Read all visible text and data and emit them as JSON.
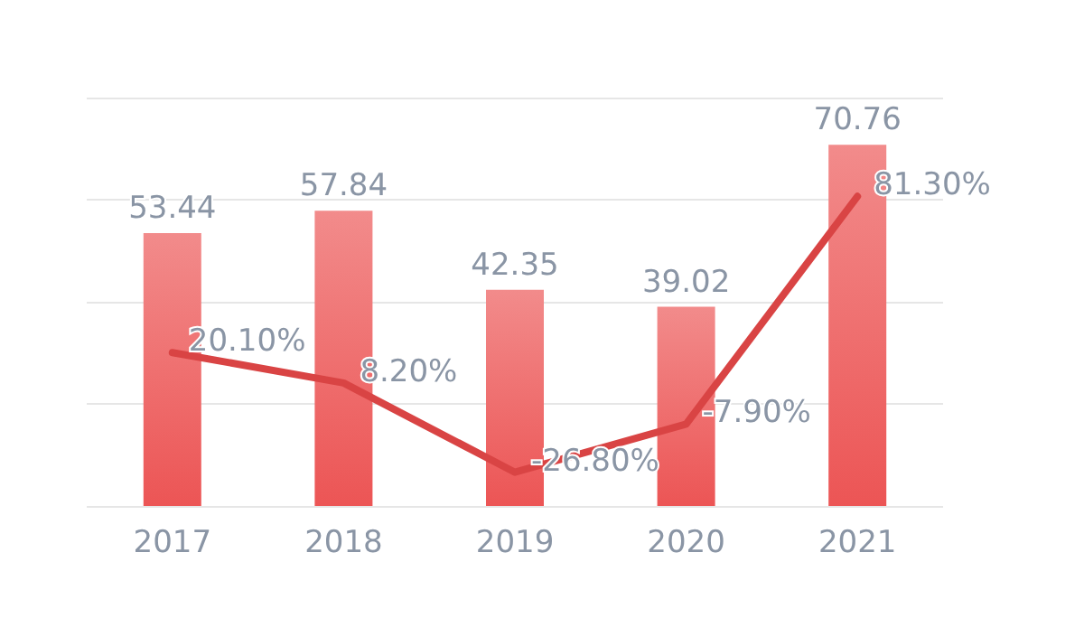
{
  "chart_data": {
    "type": "bar",
    "categories": [
      "2017",
      "2018",
      "2019",
      "2020",
      "2021"
    ],
    "series": [
      {
        "color": "#f28b8b",
        "values": [
          53.44,
          57.84,
          42.35,
          39.02,
          70.76
        ],
        "value_labels": [
          "53.44",
          "57.84",
          "42.35",
          "39.02",
          "70.76"
        ]
      },
      {
        "type": "line",
        "axis": "y2",
        "color": "#d94444",
        "values": [
          20.1,
          8.2,
          -26.8,
          -7.9,
          81.3
        ],
        "value_labels": [
          "20.10%",
          "8.20%",
          "-26.80%",
          "-7.90%",
          "81.30%"
        ]
      }
    ],
    "ylim": [
      0,
      80
    ],
    "yticks": [
      0,
      20,
      40,
      60,
      80
    ],
    "y2lim": [
      -40,
      120
    ],
    "y2ticks": [
      -40,
      0,
      40,
      80,
      120
    ],
    "tick_labels": "x",
    "grid": "y",
    "marker": "none",
    "line_style": "solid"
  }
}
